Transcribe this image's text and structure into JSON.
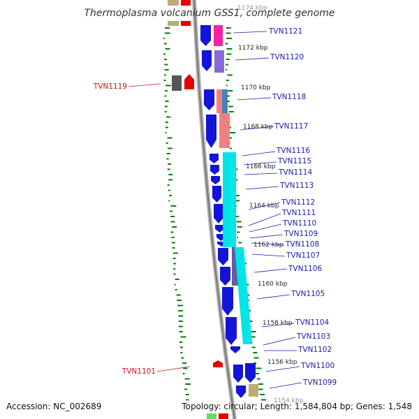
{
  "title": "Thermoplasma volcanium GSS1, complete genome",
  "footer": {
    "accession": "Accession: NC_002689",
    "summary": "Topology: circular; Length: 1,584,804 bp; Genes: 1,548"
  },
  "kbp_labels": [
    "1174 kbp",
    "1172 kbp",
    "1170 kbp",
    "1168 kbp",
    "1166 kbp",
    "1164 kbp",
    "1162 kbp",
    "1160 kbp",
    "1158 kbp",
    "1156 kbp",
    "1154 kbp"
  ],
  "genes_right": [
    "TVN1121",
    "TVN1120",
    "TVN1118",
    "TVN1117",
    "TVN1116",
    "TVN1115",
    "TVN1114",
    "TVN1113",
    "TVN1112",
    "TVN1111",
    "TVN1110",
    "TVN1109",
    "TVN1108",
    "TVN1107",
    "TVN1106",
    "TVN1105",
    "TVN1104",
    "TVN1103",
    "TVN1102",
    "TVN1100",
    "TVN1099"
  ],
  "genes_left": [
    "TVN1119",
    "TVN1101"
  ],
  "colors": {
    "forward_cds": "#1414d8",
    "reverse_cds": "#e60000",
    "backbone": "#888888",
    "gc_dots": "#0a7a0a",
    "label_forward": "#1a1aa8",
    "label_reverse": "#cc1111",
    "cyan_block": "#00e5e5",
    "salmon_block": "#f08080",
    "magenta_block": "#ff1fa0",
    "purple_block": "#8a6ad8",
    "olive_block": "#b9ad72",
    "grey_block": "#555555"
  }
}
